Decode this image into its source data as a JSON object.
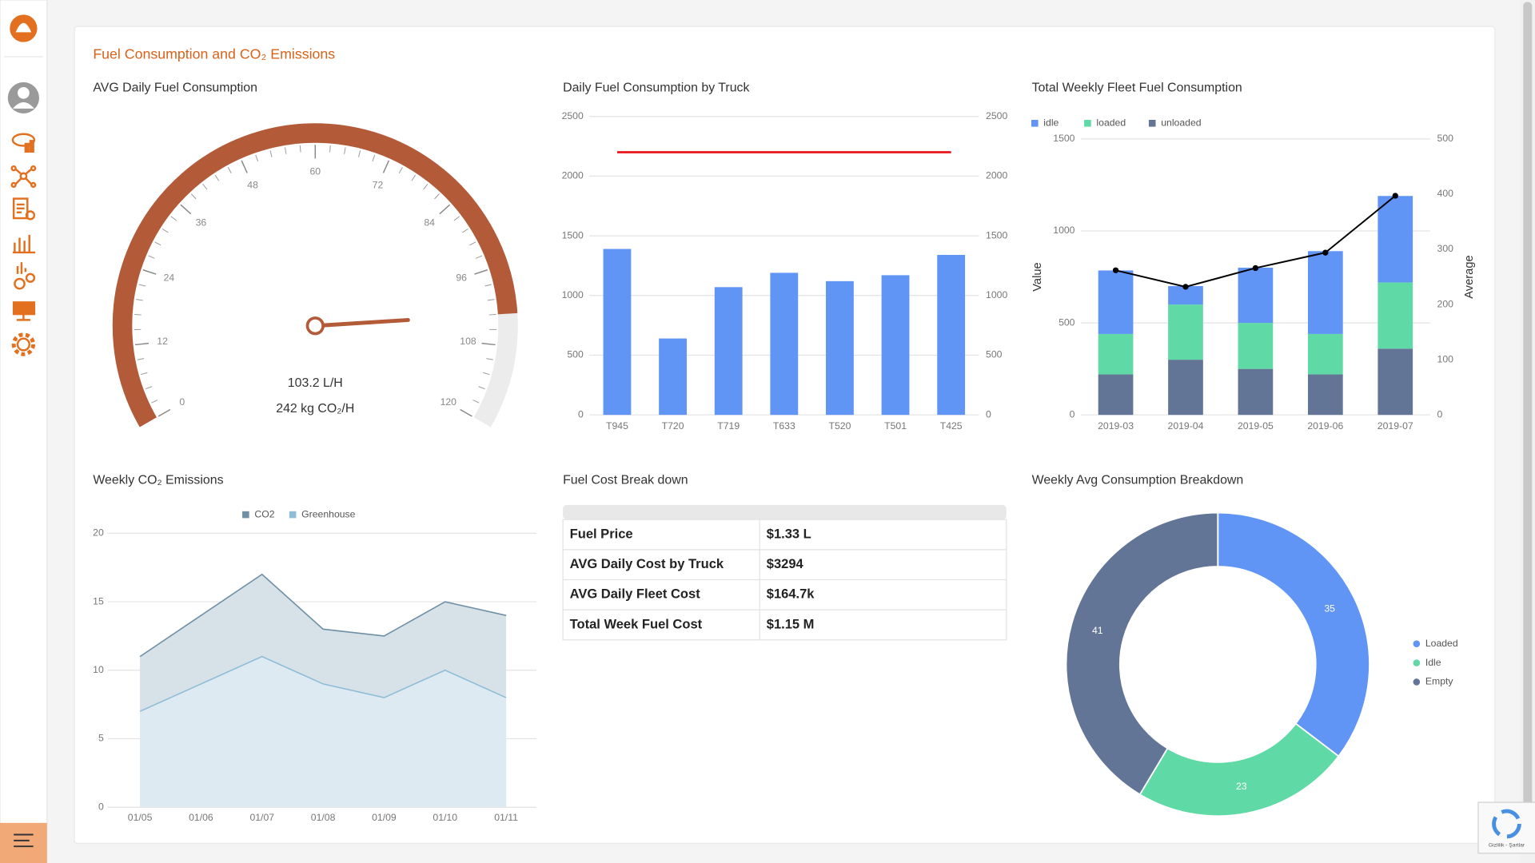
{
  "header": {
    "title": "Fuel Consumption and CO₂ Emissions"
  },
  "chart_data": [
    {
      "type": "gauge",
      "title": "AVG Daily Fuel Consumption",
      "value": 103.2,
      "value_label": "103.2 L/H",
      "subtitle": "242 kg CO₂/H",
      "ylim": [
        0,
        120
      ],
      "yticks": [
        0,
        12,
        24,
        36,
        48,
        60,
        72,
        84,
        96,
        108,
        120
      ],
      "color": "#b35a38",
      "track_color": "#ececec"
    },
    {
      "type": "bar",
      "title": "Daily Fuel Consumption by Truck",
      "categories": [
        "T945",
        "T720",
        "T719",
        "T633",
        "T520",
        "T501",
        "T425"
      ],
      "series": [
        {
          "color": "#6094f5",
          "values": [
            1390,
            640,
            1070,
            1190,
            1120,
            1170,
            1340
          ]
        },
        {
          "type": "line",
          "axis": "y2",
          "color": "#e8151c",
          "values": [
            2200,
            2200,
            2200,
            2200,
            2200,
            2200,
            2200
          ]
        }
      ],
      "ylim": [
        0,
        2500
      ],
      "yticks": [
        0,
        500,
        1000,
        1500,
        2000,
        2500
      ],
      "y2lim": [
        0,
        2500
      ],
      "y2ticks": [
        0,
        500,
        1000,
        1500,
        2000,
        2500
      ],
      "grid": true
    },
    {
      "type": "bar",
      "stacked": true,
      "title": "Total Weekly Fleet Fuel Consumption",
      "ylabel": "Value",
      "y2label": "Average",
      "categories": [
        "2019-03",
        "2019-04",
        "2019-05",
        "2019-06",
        "2019-07"
      ],
      "series": [
        {
          "name": "idle",
          "color": "#6094f5",
          "values": [
            345,
            100,
            300,
            450,
            470
          ]
        },
        {
          "name": "loaded",
          "color": "#5fd9a5",
          "values": [
            220,
            300,
            250,
            220,
            360
          ]
        },
        {
          "name": "unloaded",
          "color": "#637596",
          "values": [
            220,
            300,
            250,
            220,
            360
          ]
        },
        {
          "type": "line",
          "axis": "y2",
          "color": "#000000",
          "marker": true,
          "values": [
            262,
            232,
            266,
            294,
            397
          ]
        }
      ],
      "ylim": [
        0,
        1500
      ],
      "yticks": [
        0,
        500,
        1000,
        1500
      ],
      "y2lim": [
        0,
        500
      ],
      "y2ticks": [
        0,
        100,
        200,
        300,
        400,
        500
      ],
      "grid": true,
      "legend": "top-left"
    },
    {
      "type": "area",
      "title": "Weekly CO₂ Emissions",
      "categories": [
        "01/05",
        "01/06",
        "01/07",
        "01/08",
        "01/09",
        "01/10",
        "01/11"
      ],
      "series": [
        {
          "name": "CO2",
          "color": "#6f8fa5",
          "fill": "#d6e1e8",
          "values": [
            11,
            14,
            17,
            13,
            12.5,
            15,
            14
          ]
        },
        {
          "name": "Greenhouse",
          "color": "#8fbcd6",
          "fill": "#deeaf2",
          "values": [
            7,
            9,
            11,
            9,
            8,
            10,
            8
          ]
        }
      ],
      "ylim": [
        0,
        20
      ],
      "yticks": [
        0,
        5,
        10,
        15,
        20
      ],
      "grid": true,
      "legend": "top"
    },
    {
      "type": "pie",
      "donut": true,
      "title": "Weekly Avg Consumption Breakdown",
      "categories": [
        "Loaded",
        "Idle",
        "Empty"
      ],
      "values": [
        35,
        23,
        41
      ],
      "colors": [
        "#6094f5",
        "#5fd9a5",
        "#637596"
      ],
      "legend": "right"
    }
  ],
  "table": {
    "title": "Fuel Cost Break down",
    "rows": [
      [
        "Fuel Price",
        "$1.33 L"
      ],
      [
        "AVG Daily Cost by Truck",
        "$3294"
      ],
      [
        "AVG Daily Fleet Cost",
        "$164.7k"
      ],
      [
        "Total Week Fuel Cost",
        "$1.15 M"
      ]
    ]
  },
  "recaptcha": {
    "text": "Gizlilik - Şartlar"
  }
}
